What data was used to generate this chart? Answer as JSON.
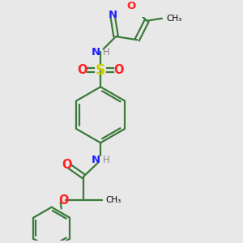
{
  "bg_color": "#e8e8e8",
  "bond_color": "#3a7a3a",
  "N_color": "#2020ff",
  "O_color": "#ff2020",
  "S_color": "#cccc00",
  "line_width": 1.6,
  "font_size": 8.5,
  "figsize": [
    3.0,
    3.0
  ],
  "dpi": 100,
  "xlim": [
    -2.5,
    4.0
  ],
  "ylim": [
    -4.5,
    3.5
  ]
}
